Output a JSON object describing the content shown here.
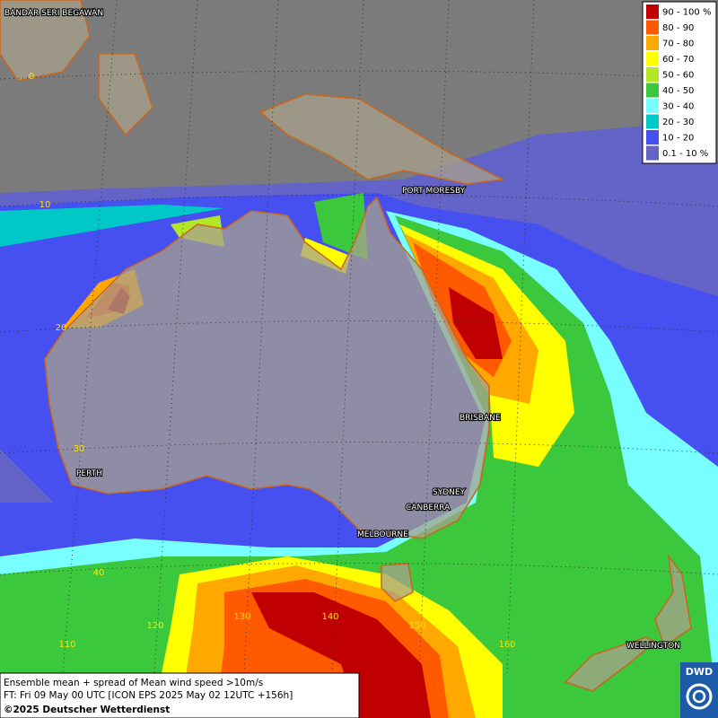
{
  "legend": {
    "entries": [
      {
        "label": "90 - 100 %",
        "color": "#c00000"
      },
      {
        "label": "80 - 90",
        "color": "#ff5a00"
      },
      {
        "label": "70 - 80",
        "color": "#ffa800"
      },
      {
        "label": "60 - 70",
        "color": "#ffff00"
      },
      {
        "label": "50 - 60",
        "color": "#b4e628"
      },
      {
        "label": "40 - 50",
        "color": "#3cc83c"
      },
      {
        "label": "30 - 40",
        "color": "#78ffff"
      },
      {
        "label": "20 - 30",
        "color": "#00c8c8"
      },
      {
        "label": "10 - 20",
        "color": "#4650f0"
      },
      {
        "label": "0.1 - 10 %",
        "color": "#6464c8"
      }
    ]
  },
  "cities": [
    "BANDAR SERI BEGAWAN",
    "PORT MORESBY",
    "BRISBANE",
    "PERTH",
    "SYDNEY",
    "CANBERRA",
    "MELBOURNE",
    "WELLINGTON"
  ],
  "grid_labels": {
    "latitudes": [
      0,
      10,
      20,
      30,
      40
    ],
    "longitudes": [
      110,
      120,
      130,
      140,
      150,
      160
    ]
  },
  "caption": {
    "line1": "Ensemble mean + spread of Mean wind speed >10m/s",
    "line2": "FT: Fri 09 May 00 UTC [ICON EPS 2025 May 02 12UTC +156h]",
    "line3": "©2025 Deutscher Wetterdienst"
  },
  "logo": "DWD"
}
